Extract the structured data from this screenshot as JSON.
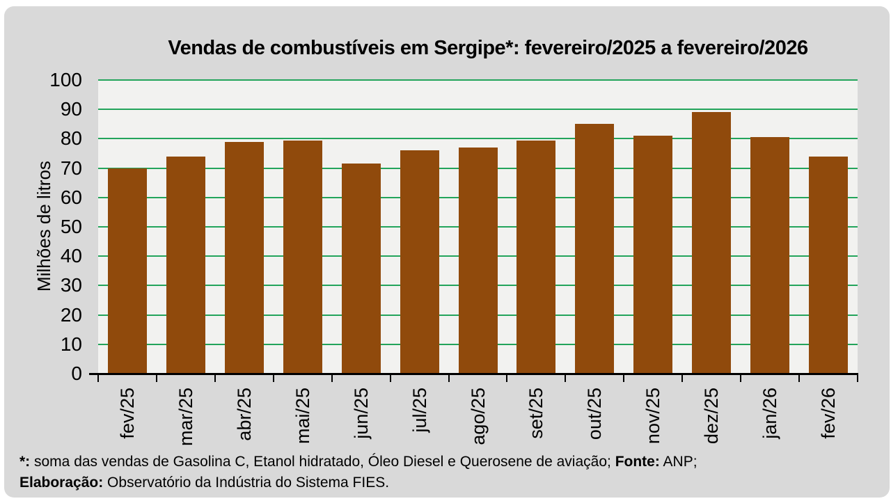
{
  "page": {
    "background": "#ffffff",
    "panel_color": "#d9d9d9"
  },
  "chart_data": {
    "type": "bar",
    "title": "Vendas de combustíveis em Sergipe*: fevereiro/2025 a fevereiro/2026",
    "ylabel": "Milhões de litros",
    "xlabel": "",
    "categories": [
      "fev/25",
      "mar/25",
      "abr/25",
      "mai/25",
      "jun/25",
      "jul/25",
      "ago/25",
      "set/25",
      "out/25",
      "nov/25",
      "dez/25",
      "jan/26",
      "fev/26"
    ],
    "values": [
      70,
      74,
      79,
      79.5,
      71.5,
      76,
      77,
      79.5,
      85,
      81,
      89,
      80.5,
      74
    ],
    "ylim": [
      0,
      100
    ],
    "ytick_step": 10,
    "grid": true,
    "legend": false,
    "bar_color": "#904a0c",
    "grid_color": "#23a45b",
    "plot_bg": "#f2f2f0",
    "axis_color": "#000000",
    "text_color": "#000000"
  },
  "footnote": {
    "lines": [
      {
        "segments": [
          {
            "text": "*:",
            "bold": true
          },
          {
            "text": " soma das vendas de Gasolina C, Etanol hidratado, Óleo Diesel e Querosene de aviação; ",
            "bold": false
          },
          {
            "text": "Fonte:",
            "bold": true
          },
          {
            "text": " ANP;",
            "bold": false
          }
        ]
      },
      {
        "segments": [
          {
            "text": "Elaboração:",
            "bold": true
          },
          {
            "text": " Observatório da Indústria do Sistema FIES.",
            "bold": false
          }
        ]
      }
    ]
  }
}
